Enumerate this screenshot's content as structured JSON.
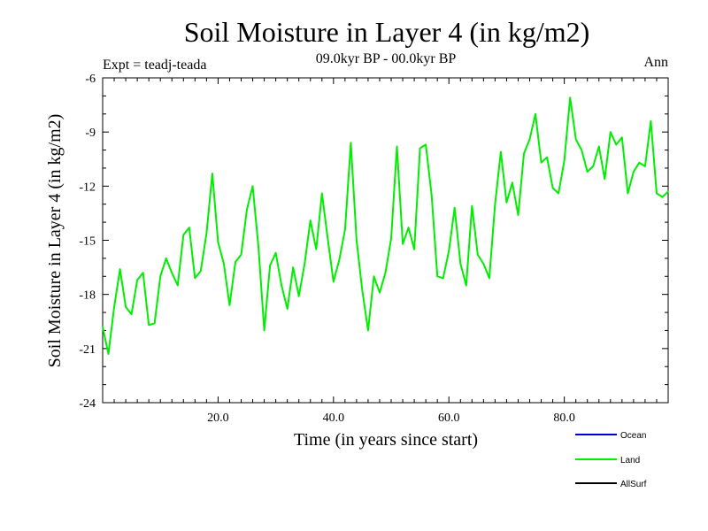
{
  "chart_data": {
    "type": "line",
    "title": "Soil Moisture in Layer 4 (in kg/m2)",
    "subtitle": "09.0kyr BP - 00.0kyr BP",
    "expt_label": "Expt = teadj-teada",
    "season_label": "Ann",
    "xlabel": "Time (in years since start)",
    "ylabel": "Soil Moisture in Layer 4 (in kg/m2)",
    "xlim": [
      0,
      98
    ],
    "ylim": [
      -24,
      -6
    ],
    "xticks": [
      20,
      40,
      60,
      80
    ],
    "xtick_labels": [
      "20.0",
      "40.0",
      "60.0",
      "80.0"
    ],
    "yticks": [
      -24,
      -21,
      -18,
      -15,
      -12,
      -9,
      -6
    ],
    "ytick_labels": [
      "-24",
      "-21",
      "-18",
      "-15",
      "-12",
      "-9",
      "-6"
    ],
    "legend_position": "bottom-right",
    "legend": [
      {
        "name": "Ocean",
        "color": "#0000cc"
      },
      {
        "name": "Land",
        "color": "#00ee00"
      },
      {
        "name": "AllSurf",
        "color": "#000000"
      }
    ],
    "series": [
      {
        "name": "Land",
        "color": "#00ee00",
        "x": [
          0,
          1,
          2,
          3,
          4,
          5,
          6,
          7,
          8,
          9,
          10,
          11,
          12,
          13,
          14,
          15,
          16,
          17,
          18,
          19,
          20,
          21,
          22,
          23,
          24,
          25,
          26,
          27,
          28,
          29,
          30,
          31,
          32,
          33,
          34,
          35,
          36,
          37,
          38,
          39,
          40,
          41,
          42,
          43,
          44,
          45,
          46,
          47,
          48,
          49,
          50,
          51,
          52,
          53,
          54,
          55,
          56,
          57,
          58,
          59,
          60,
          61,
          62,
          63,
          64,
          65,
          66,
          67,
          68,
          69,
          70,
          71,
          72,
          73,
          74,
          75,
          76,
          77,
          78,
          79,
          80,
          81,
          82,
          83,
          84,
          85,
          86,
          87,
          88,
          89,
          90,
          91,
          92,
          93,
          94,
          95,
          96,
          97,
          98
        ],
        "values": [
          -19.8,
          -21.3,
          -18.7,
          -16.6,
          -18.7,
          -19.1,
          -17.2,
          -16.8,
          -19.7,
          -19.6,
          -17.0,
          -16.0,
          -16.8,
          -17.5,
          -14.7,
          -14.3,
          -17.1,
          -16.7,
          -14.6,
          -11.3,
          -15.1,
          -16.3,
          -18.6,
          -16.2,
          -15.8,
          -13.3,
          -12.0,
          -15.4,
          -20.0,
          -16.4,
          -15.7,
          -17.5,
          -18.8,
          -16.5,
          -18.1,
          -16.3,
          -13.9,
          -15.5,
          -12.4,
          -14.9,
          -17.3,
          -16.1,
          -14.4,
          -9.6,
          -15.0,
          -17.8,
          -20.0,
          -17.0,
          -17.9,
          -16.8,
          -14.9,
          -9.8,
          -15.2,
          -14.3,
          -15.5,
          -9.9,
          -9.7,
          -12.5,
          -17.0,
          -17.1,
          -15.6,
          -13.2,
          -16.3,
          -17.5,
          -13.1,
          -15.8,
          -16.3,
          -17.1,
          -13.0,
          -10.1,
          -12.9,
          -11.8,
          -13.6,
          -10.2,
          -9.4,
          -8.0,
          -10.7,
          -10.4,
          -12.1,
          -12.4,
          -10.6,
          -7.1,
          -9.4,
          -10.0,
          -11.2,
          -10.9,
          -9.8,
          -11.6,
          -9.0,
          -9.7,
          -9.3,
          -12.4,
          -11.2,
          -10.7,
          -10.9,
          -8.4,
          -12.4,
          -12.6,
          -12.3
        ]
      }
    ]
  }
}
